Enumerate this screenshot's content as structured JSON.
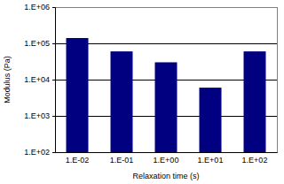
{
  "chart_data": {
    "type": "bar",
    "x_label": "Relaxation time (s)",
    "y_label": "Modulus (Pa)",
    "categories": [
      "1.E-02",
      "1.E-01",
      "1.E+00",
      "1.E+01",
      "1.E+02"
    ],
    "values": [
      140000,
      60000,
      30000,
      6000,
      60000
    ],
    "color": "#000080",
    "log": "y",
    "ylim": [
      100,
      1000000
    ],
    "yticks": [
      {
        "value": 100,
        "label": "1.E+02"
      },
      {
        "value": 1000,
        "label": "1.E+03"
      },
      {
        "value": 10000,
        "label": "1.E+04"
      },
      {
        "value": 100000,
        "label": "1.E+05"
      },
      {
        "value": 1000000,
        "label": "1.E+06"
      }
    ],
    "grid": true
  }
}
